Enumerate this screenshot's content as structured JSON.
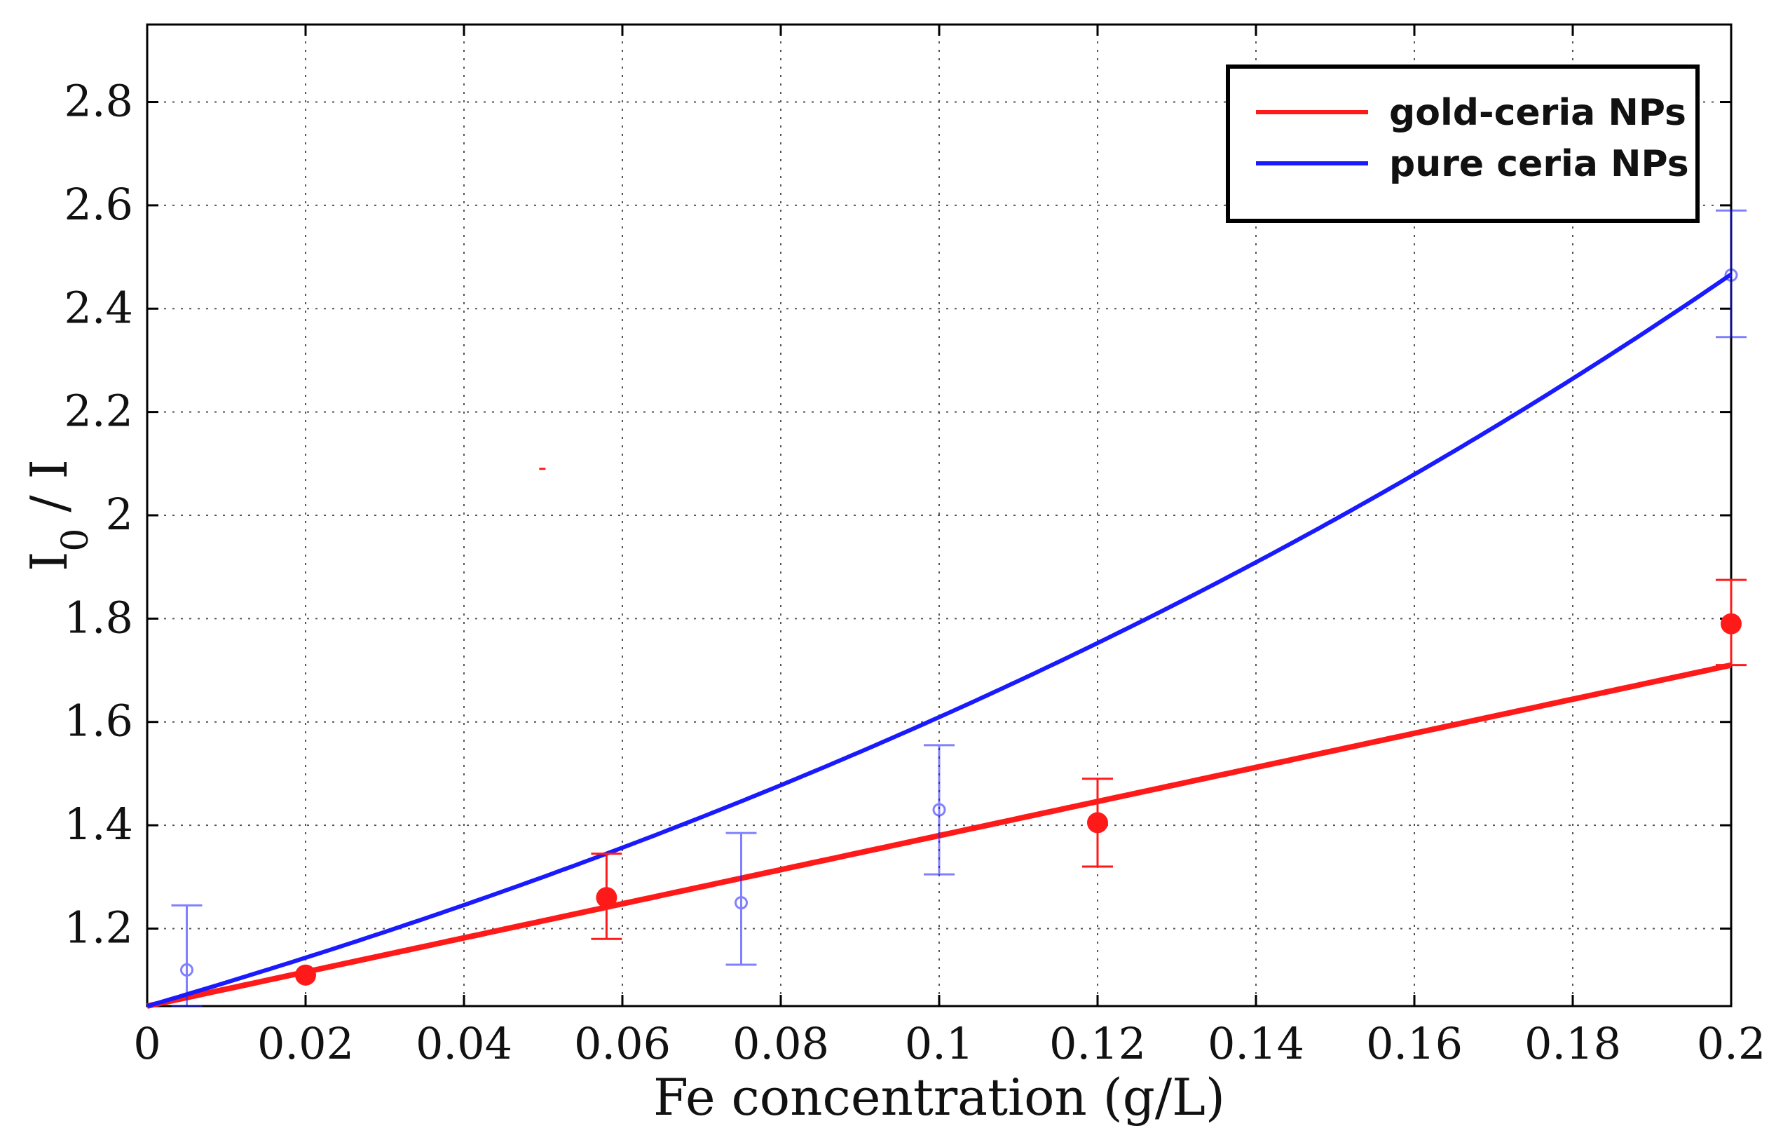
{
  "chart_data": {
    "type": "line",
    "title": "",
    "xlabel": "Fe concentration (g/L)",
    "ylabel_main": "I",
    "ylabel_sub": "0",
    "ylabel_rest": " / I",
    "xlim": [
      0,
      0.2
    ],
    "ylim": [
      1.05,
      2.95
    ],
    "xticks": [
      0,
      0.02,
      0.04,
      0.06,
      0.08,
      0.1,
      0.12,
      0.14,
      0.16,
      0.18,
      0.2
    ],
    "xtick_labels": [
      "0",
      "0.02",
      "0.04",
      "0.06",
      "0.08",
      "0.1",
      "0.12",
      "0.14",
      "0.16",
      "0.18",
      "0.2"
    ],
    "yticks": [
      1.2,
      1.4,
      1.6,
      1.8,
      2.0,
      2.2,
      2.4,
      2.6,
      2.8
    ],
    "ytick_labels": [
      "1.2",
      "1.4",
      "1.6",
      "1.8",
      "2",
      "2.2",
      "2.4",
      "2.6",
      "2.8"
    ],
    "grid": true,
    "legend_position": "top-right",
    "series": [
      {
        "name": "gold-ceria NPs",
        "color": "#ff1a1a",
        "marker": "filled-circle",
        "points": [
          {
            "x": 0.02,
            "y": 1.11,
            "err_low": 1.11,
            "err_high": 1.11
          },
          {
            "x": 0.058,
            "y": 1.26,
            "err_low": 1.18,
            "err_high": 1.345
          },
          {
            "x": 0.12,
            "y": 1.405,
            "err_low": 1.32,
            "err_high": 1.49
          },
          {
            "x": 0.2,
            "y": 1.79,
            "err_low": 1.71,
            "err_high": 1.875
          }
        ],
        "fit": {
          "kind": "linear",
          "intercept": 1.05,
          "slope": 3.3
        }
      },
      {
        "name": "pure ceria NPs",
        "color": "#1a1aff",
        "marker": "open-circle",
        "points": [
          {
            "x": 0.005,
            "y": 1.12,
            "err_low": 1.05,
            "err_high": 1.245
          },
          {
            "x": 0.075,
            "y": 1.25,
            "err_low": 1.13,
            "err_high": 1.385
          },
          {
            "x": 0.1,
            "y": 1.43,
            "err_low": 1.305,
            "err_high": 1.555
          },
          {
            "x": 0.2,
            "y": 2.465,
            "err_low": 2.345,
            "err_high": 2.59
          }
        ],
        "fit": {
          "kind": "exponential",
          "a": 1.05,
          "b": 4.27
        }
      }
    ]
  }
}
